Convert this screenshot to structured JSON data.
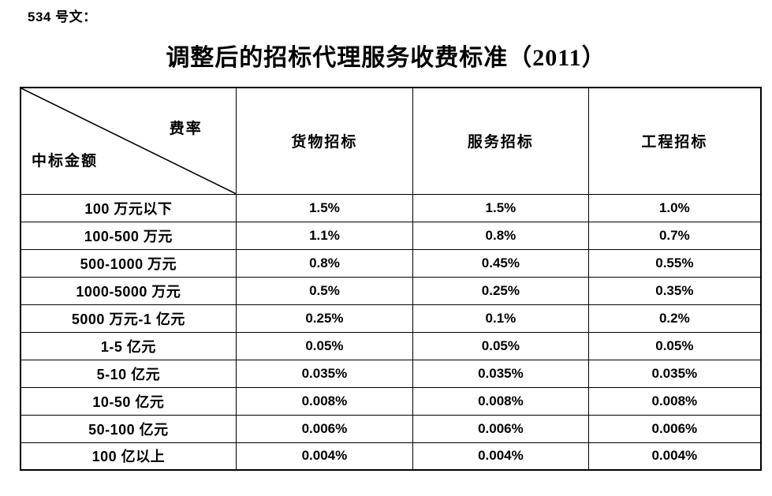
{
  "doc": {
    "number_label": "534 号文：",
    "title": "调整后的招标代理服务收费标准（2011）"
  },
  "table": {
    "corner_top": "费率",
    "corner_bottom": "中标金额",
    "columns": [
      "货物招标",
      "服务招标",
      "工程招标"
    ],
    "rows": [
      {
        "label": "100 万元以下",
        "values": [
          "1.5%",
          "1.5%",
          "1.0%"
        ]
      },
      {
        "label": "100-500 万元",
        "values": [
          "1.1%",
          "0.8%",
          "0.7%"
        ]
      },
      {
        "label": "500-1000 万元",
        "values": [
          "0.8%",
          "0.45%",
          "0.55%"
        ]
      },
      {
        "label": "1000-5000 万元",
        "values": [
          "0.5%",
          "0.25%",
          "0.35%"
        ]
      },
      {
        "label": "5000 万元-1 亿元",
        "values": [
          "0.25%",
          "0.1%",
          "0.2%"
        ]
      },
      {
        "label": "1-5 亿元",
        "values": [
          "0.05%",
          "0.05%",
          "0.05%"
        ]
      },
      {
        "label": "5-10 亿元",
        "values": [
          "0.035%",
          "0.035%",
          "0.035%"
        ]
      },
      {
        "label": "10-50 亿元",
        "values": [
          "0.008%",
          "0.008%",
          "0.008%"
        ]
      },
      {
        "label": "50-100 亿元",
        "values": [
          "0.006%",
          "0.006%",
          "0.006%"
        ]
      },
      {
        "label": "100 亿以上",
        "values": [
          "0.004%",
          "0.004%",
          "0.004%"
        ]
      }
    ],
    "text_color": "#000000",
    "border_color": "#000000",
    "background_color": "#ffffff"
  }
}
